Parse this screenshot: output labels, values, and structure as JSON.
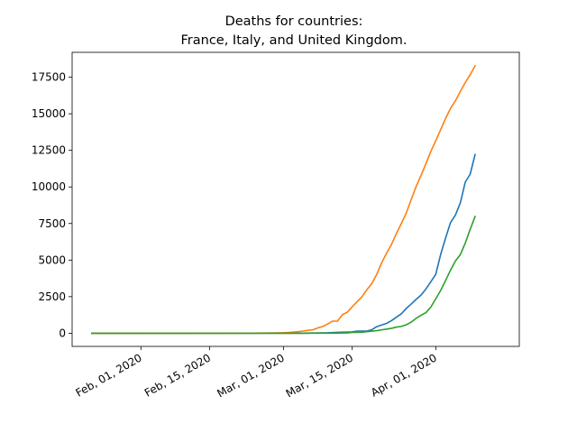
{
  "chart_data": {
    "type": "line",
    "title_line1": "Deaths for countries:",
    "title_line2": "France, Italy, and United Kingdom.",
    "xlabel": "",
    "ylabel": "",
    "x_start": "2020-01-22",
    "x_end": "2020-04-14",
    "xlim": [
      "2020-01-18",
      "2020-04-18"
    ],
    "ylim": [
      -900,
      19200
    ],
    "yticks": [
      0,
      2500,
      5000,
      7500,
      10000,
      12500,
      15000,
      17500
    ],
    "ytick_labels": [
      "0",
      "2500",
      "5000",
      "7500",
      "10000",
      "12500",
      "15000",
      "17500"
    ],
    "xticks": [
      "2020-02-01",
      "2020-02-15",
      "2020-03-01",
      "2020-03-15",
      "2020-04-01"
    ],
    "xtick_labels": [
      "Feb, 01, 2020",
      "Feb, 15, 2020",
      "Mar, 01, 2020",
      "Mar, 15, 2020",
      "Apr, 01, 2020"
    ],
    "grid": false,
    "legend": false,
    "series": [
      {
        "color": "#1f77b4",
        "points": [
          [
            "2020-01-22",
            0
          ],
          [
            "2020-03-01",
            2
          ],
          [
            "2020-03-05",
            6
          ],
          [
            "2020-03-08",
            19
          ],
          [
            "2020-03-10",
            33
          ],
          [
            "2020-03-12",
            61
          ],
          [
            "2020-03-14",
            79
          ],
          [
            "2020-03-15",
            91
          ],
          [
            "2020-03-16",
            148
          ],
          [
            "2020-03-17",
            148
          ],
          [
            "2020-03-18",
            148
          ],
          [
            "2020-03-19",
            243
          ],
          [
            "2020-03-20",
            450
          ],
          [
            "2020-03-21",
            562
          ],
          [
            "2020-03-22",
            674
          ],
          [
            "2020-03-23",
            860
          ],
          [
            "2020-03-24",
            1100
          ],
          [
            "2020-03-25",
            1331
          ],
          [
            "2020-03-26",
            1696
          ],
          [
            "2020-03-27",
            1995
          ],
          [
            "2020-03-28",
            2314
          ],
          [
            "2020-03-29",
            2606
          ],
          [
            "2020-03-30",
            3024
          ],
          [
            "2020-03-31",
            3523
          ],
          [
            "2020-04-01",
            4032
          ],
          [
            "2020-04-02",
            5387
          ],
          [
            "2020-04-03",
            6507
          ],
          [
            "2020-04-04",
            7560
          ],
          [
            "2020-04-05",
            8078
          ],
          [
            "2020-04-06",
            8911
          ],
          [
            "2020-04-07",
            10328
          ],
          [
            "2020-04-08",
            10869
          ],
          [
            "2020-04-09",
            12210
          ]
        ]
      },
      {
        "color": "#ff7f0e",
        "points": [
          [
            "2020-01-22",
            0
          ],
          [
            "2020-02-20",
            0
          ],
          [
            "2020-02-22",
            2
          ],
          [
            "2020-02-24",
            7
          ],
          [
            "2020-02-26",
            12
          ],
          [
            "2020-02-28",
            21
          ],
          [
            "2020-03-01",
            34
          ],
          [
            "2020-03-02",
            52
          ],
          [
            "2020-03-03",
            79
          ],
          [
            "2020-03-04",
            107
          ],
          [
            "2020-03-05",
            148
          ],
          [
            "2020-03-06",
            197
          ],
          [
            "2020-03-07",
            233
          ],
          [
            "2020-03-08",
            366
          ],
          [
            "2020-03-09",
            463
          ],
          [
            "2020-03-10",
            631
          ],
          [
            "2020-03-11",
            827
          ],
          [
            "2020-03-12",
            827
          ],
          [
            "2020-03-13",
            1266
          ],
          [
            "2020-03-14",
            1441
          ],
          [
            "2020-03-15",
            1809
          ],
          [
            "2020-03-16",
            2158
          ],
          [
            "2020-03-17",
            2503
          ],
          [
            "2020-03-18",
            2978
          ],
          [
            "2020-03-19",
            3405
          ],
          [
            "2020-03-20",
            4032
          ],
          [
            "2020-03-21",
            4825
          ],
          [
            "2020-03-22",
            5476
          ],
          [
            "2020-03-23",
            6077
          ],
          [
            "2020-03-24",
            6820
          ],
          [
            "2020-03-25",
            7503
          ],
          [
            "2020-03-26",
            8215
          ],
          [
            "2020-03-27",
            9134
          ],
          [
            "2020-03-28",
            10023
          ],
          [
            "2020-03-29",
            10779
          ],
          [
            "2020-03-30",
            11591
          ],
          [
            "2020-03-31",
            12428
          ],
          [
            "2020-04-01",
            13155
          ],
          [
            "2020-04-02",
            13915
          ],
          [
            "2020-04-03",
            14681
          ],
          [
            "2020-04-04",
            15362
          ],
          [
            "2020-04-05",
            15887
          ],
          [
            "2020-04-06",
            16523
          ],
          [
            "2020-04-07",
            17127
          ],
          [
            "2020-04-08",
            17669
          ],
          [
            "2020-04-09",
            18279
          ]
        ]
      },
      {
        "color": "#2ca02c",
        "points": [
          [
            "2020-01-22",
            0
          ],
          [
            "2020-03-05",
            1
          ],
          [
            "2020-03-08",
            3
          ],
          [
            "2020-03-10",
            6
          ],
          [
            "2020-03-12",
            8
          ],
          [
            "2020-03-13",
            21
          ],
          [
            "2020-03-14",
            21
          ],
          [
            "2020-03-15",
            56
          ],
          [
            "2020-03-16",
            56
          ],
          [
            "2020-03-17",
            72
          ],
          [
            "2020-03-18",
            104
          ],
          [
            "2020-03-19",
            144
          ],
          [
            "2020-03-20",
            177
          ],
          [
            "2020-03-21",
            233
          ],
          [
            "2020-03-22",
            281
          ],
          [
            "2020-03-23",
            335
          ],
          [
            "2020-03-24",
            422
          ],
          [
            "2020-03-25",
            465
          ],
          [
            "2020-03-26",
            578
          ],
          [
            "2020-03-27",
            759
          ],
          [
            "2020-03-28",
            1019
          ],
          [
            "2020-03-29",
            1228
          ],
          [
            "2020-03-30",
            1408
          ],
          [
            "2020-03-31",
            1789
          ],
          [
            "2020-04-01",
            2352
          ],
          [
            "2020-04-02",
            2921
          ],
          [
            "2020-04-03",
            3605
          ],
          [
            "2020-04-04",
            4313
          ],
          [
            "2020-04-05",
            4934
          ],
          [
            "2020-04-06",
            5373
          ],
          [
            "2020-04-07",
            6159
          ],
          [
            "2020-04-08",
            7097
          ],
          [
            "2020-04-09",
            7978
          ]
        ]
      }
    ]
  }
}
